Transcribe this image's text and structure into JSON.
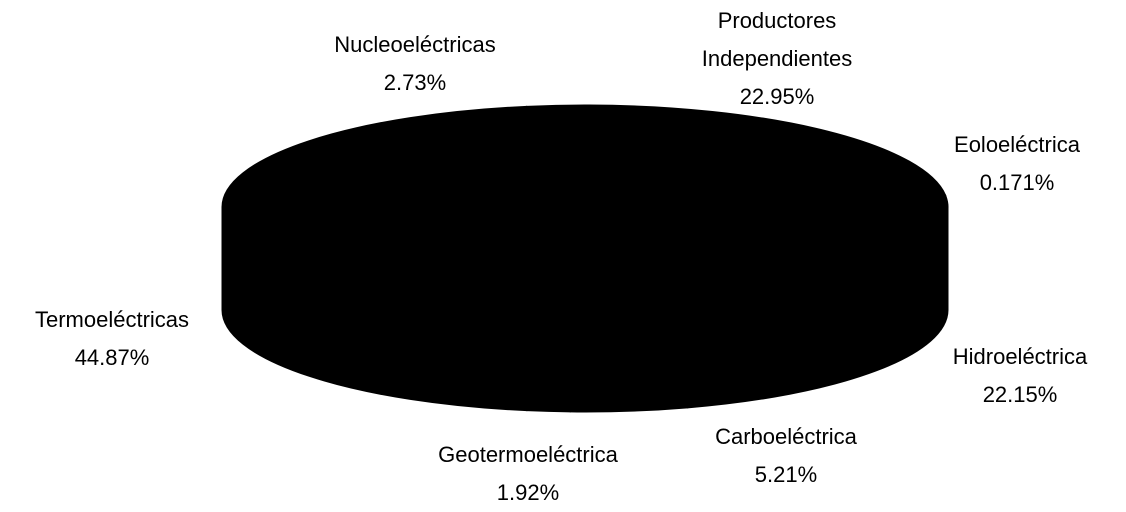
{
  "chart_data": {
    "type": "pie3d",
    "categories": [
      "Termoeléctricas",
      "Nucleoeléctricas",
      "Productores Independientes",
      "Eoloeléctrica",
      "Hidroeléctrica",
      "Carboeléctrica",
      "Geotermoeléctrica"
    ],
    "values": [
      44.87,
      2.73,
      22.95,
      0.171,
      22.15,
      5.21,
      1.92
    ],
    "value_labels": [
      "44.87%",
      "2.73%",
      "22.95%",
      "0.171%",
      "22.15%",
      "5.21%",
      "1.92%"
    ],
    "color": "#000000"
  }
}
